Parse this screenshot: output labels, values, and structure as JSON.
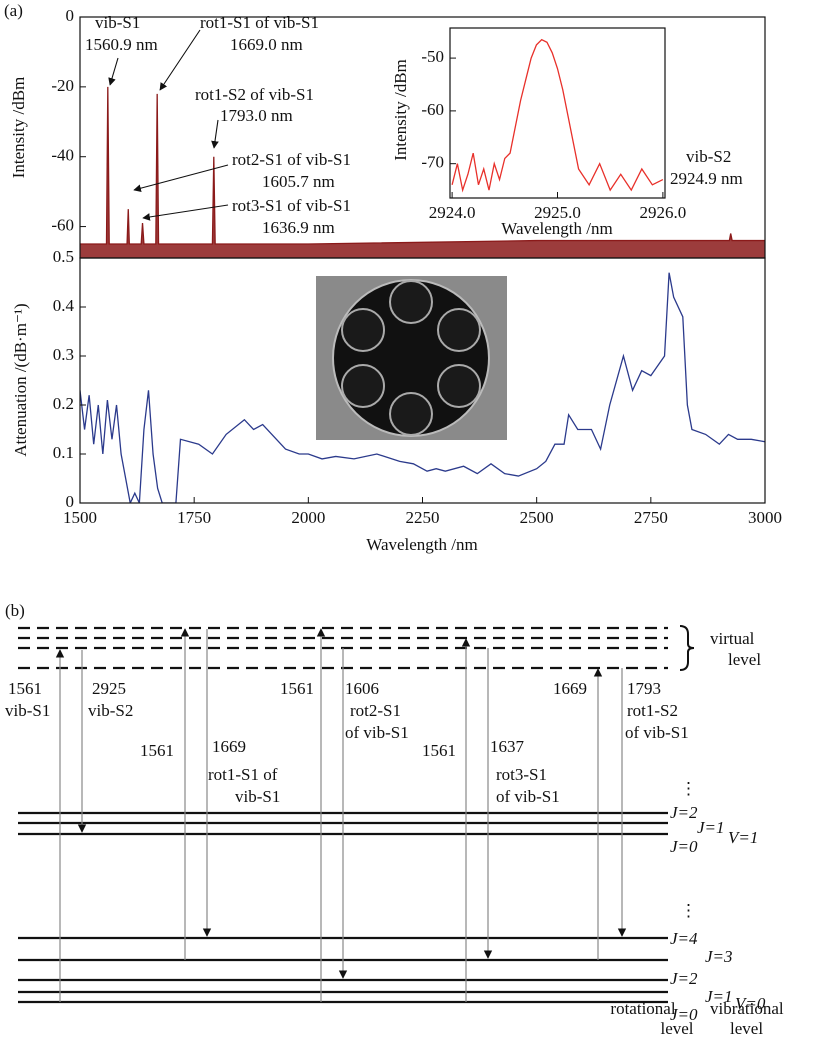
{
  "chart_data": [
    {
      "type": "line",
      "panel_label": "(a)",
      "ylabel": "Intensity /dBm",
      "x": [
        1500,
        1558,
        1560.9,
        1564,
        1603,
        1605.7,
        1608,
        1634,
        1636.9,
        1640,
        1666,
        1669.0,
        1672,
        1790,
        1793.0,
        1796,
        2000,
        2500,
        2922,
        2924.9,
        2928,
        3000
      ],
      "values": [
        -65,
        -65,
        -20,
        -65,
        -65,
        -55,
        -65,
        -65,
        -59,
        -65,
        -65,
        -22,
        -65,
        -65,
        -40,
        -65,
        -65,
        -64,
        -64,
        -62,
        -64,
        -64
      ],
      "color": "#8b1a1a",
      "xlim": [
        1500,
        3000
      ],
      "ylim": [
        -69,
        0
      ],
      "yticks": [
        0,
        -20,
        -40,
        -60
      ],
      "annotations": [
        "vib-S1",
        "1560.9 nm",
        "rot1-S1 of vib-S1",
        "1669.0 nm",
        "rot1-S2 of vib-S1",
        "1793.0 nm",
        "rot2-S1 of vib-S1",
        "1605.7 nm",
        "rot3-S1 of vib-S1",
        "1636.9 nm",
        "vib-S2",
        "2924.9 nm"
      ]
    },
    {
      "type": "line",
      "xlabel": "Wavelength /nm",
      "ylabel": "Intensity /dBm",
      "x": [
        2924.0,
        2924.05,
        2924.1,
        2924.15,
        2924.2,
        2924.25,
        2924.3,
        2924.35,
        2924.4,
        2924.45,
        2924.5,
        2924.55,
        2924.6,
        2924.65,
        2924.7,
        2924.75,
        2924.8,
        2924.85,
        2924.9,
        2924.95,
        2925.0,
        2925.05,
        2925.1,
        2925.15,
        2925.2,
        2925.3,
        2925.4,
        2925.5,
        2925.6,
        2925.7,
        2925.8,
        2925.9,
        2926.0
      ],
      "values": [
        -74,
        -70,
        -75,
        -72,
        -68,
        -74,
        -71,
        -75,
        -70,
        -73,
        -69,
        -68,
        -63,
        -58,
        -54,
        -50,
        -47.5,
        -46.5,
        -47,
        -49,
        -52,
        -56,
        -61,
        -66,
        -71,
        -74,
        -70,
        -75,
        -72,
        -75,
        -71,
        -74,
        -73
      ],
      "color": "#e8302a",
      "xlim": [
        2923.98,
        2926.02
      ],
      "ylim": [
        -76.5,
        -44.3
      ],
      "xticks": [
        {
          "value": 2924.0,
          "label": "2924.0"
        },
        {
          "value": 2925.0,
          "label": "2925.0"
        },
        {
          "value": 2926.0,
          "label": "2926.0"
        }
      ],
      "yticks": [
        -50,
        -60,
        -70
      ]
    },
    {
      "type": "line",
      "xlabel": "Wavelength /nm",
      "ylabel": "Attenuation /(dB·m⁻¹)",
      "x": [
        1500,
        1510,
        1520,
        1530,
        1540,
        1550,
        1560,
        1570,
        1580,
        1590,
        1600,
        1610,
        1620,
        1630,
        1640,
        1650,
        1660,
        1670,
        1680,
        1710,
        1720,
        1760,
        1790,
        1820,
        1860,
        1880,
        1900,
        1950,
        1980,
        2000,
        2030,
        2060,
        2100,
        2150,
        2200,
        2230,
        2260,
        2280,
        2300,
        2340,
        2370,
        2400,
        2430,
        2460,
        2500,
        2520,
        2540,
        2560,
        2570,
        2590,
        2620,
        2640,
        2660,
        2690,
        2710,
        2730,
        2750,
        2780,
        2790,
        2800,
        2820,
        2830,
        2840,
        2870,
        2900,
        2920,
        2940,
        2970,
        3000
      ],
      "values": [
        0.23,
        0.15,
        0.22,
        0.12,
        0.2,
        0.1,
        0.21,
        0.13,
        0.2,
        0.1,
        0.05,
        0,
        0.02,
        0,
        0.15,
        0.23,
        0.1,
        0.03,
        0,
        0,
        0.13,
        0.12,
        0.1,
        0.14,
        0.17,
        0.15,
        0.16,
        0.11,
        0.1,
        0.1,
        0.09,
        0.095,
        0.09,
        0.1,
        0.085,
        0.08,
        0.065,
        0.07,
        0.065,
        0.075,
        0.06,
        0.08,
        0.06,
        0.055,
        0.07,
        0.085,
        0.12,
        0.12,
        0.18,
        0.15,
        0.15,
        0.11,
        0.2,
        0.3,
        0.23,
        0.27,
        0.26,
        0.3,
        0.47,
        0.42,
        0.38,
        0.2,
        0.15,
        0.14,
        0.12,
        0.14,
        0.13,
        0.13,
        0.125
      ],
      "color": "#2b3a8c",
      "xlim": [
        1500,
        3000
      ],
      "ylim": [
        0,
        0.5
      ],
      "xticks": [
        1500,
        1750,
        2000,
        2250,
        2500,
        2750,
        3000
      ],
      "yticks": [
        0,
        0.1,
        0.2,
        0.3,
        0.4,
        0.5
      ]
    }
  ],
  "diagram": {
    "panel_label": "(b)",
    "virtual_level": [
      "virtual",
      "level"
    ],
    "labels": [
      "1561",
      "vib-S1",
      "2925",
      "vib-S2",
      "1561",
      "1669",
      "rot1-S1 of",
      "vib-S1",
      "1561",
      "1606",
      "rot2-S1",
      "of vib-S1",
      "1561",
      "1637",
      "rot3-S1",
      "of vib-S1",
      "1669",
      "1793",
      "rot1-S2",
      "of vib-S1"
    ],
    "v1_levels": [
      "J=2",
      "J=1",
      "J=0",
      "V=1"
    ],
    "v0_levels": [
      "J=4",
      "J=3",
      "J=2",
      "J=1",
      "J=0",
      "V=0"
    ],
    "axis_names": [
      "rotational",
      "level",
      "vibrational",
      "level"
    ]
  }
}
